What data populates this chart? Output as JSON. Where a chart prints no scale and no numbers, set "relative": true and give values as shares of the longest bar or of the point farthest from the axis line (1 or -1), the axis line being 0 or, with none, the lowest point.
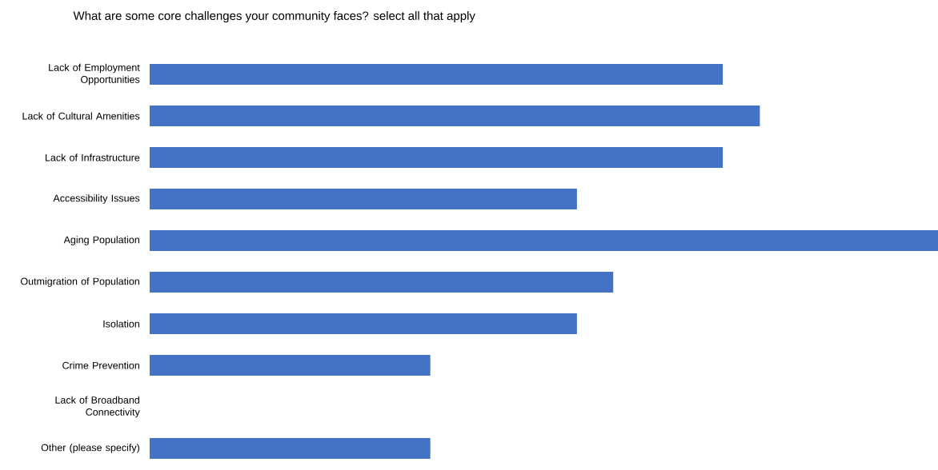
{
  "chart_data": {
    "type": "bar",
    "orientation": "horizontal",
    "relative": true,
    "title": "What are some core challenges your community faces? select all that apply",
    "categories": [
      "Lack of Employment Opportunities",
      "Lack of Cultural Amenities",
      "Lack of Infrastructure",
      "Accessibility Issues",
      "Aging Population",
      "Outmigration of Population",
      "Isolation",
      "Crime Prevention",
      "Lack of Broadband Connectivity",
      "Other (please specify)"
    ],
    "values": [
      0.727,
      0.774,
      0.727,
      0.542,
      1,
      0.588,
      0.542,
      0.356,
      0,
      0.356
    ],
    "color": "#4472c4"
  }
}
